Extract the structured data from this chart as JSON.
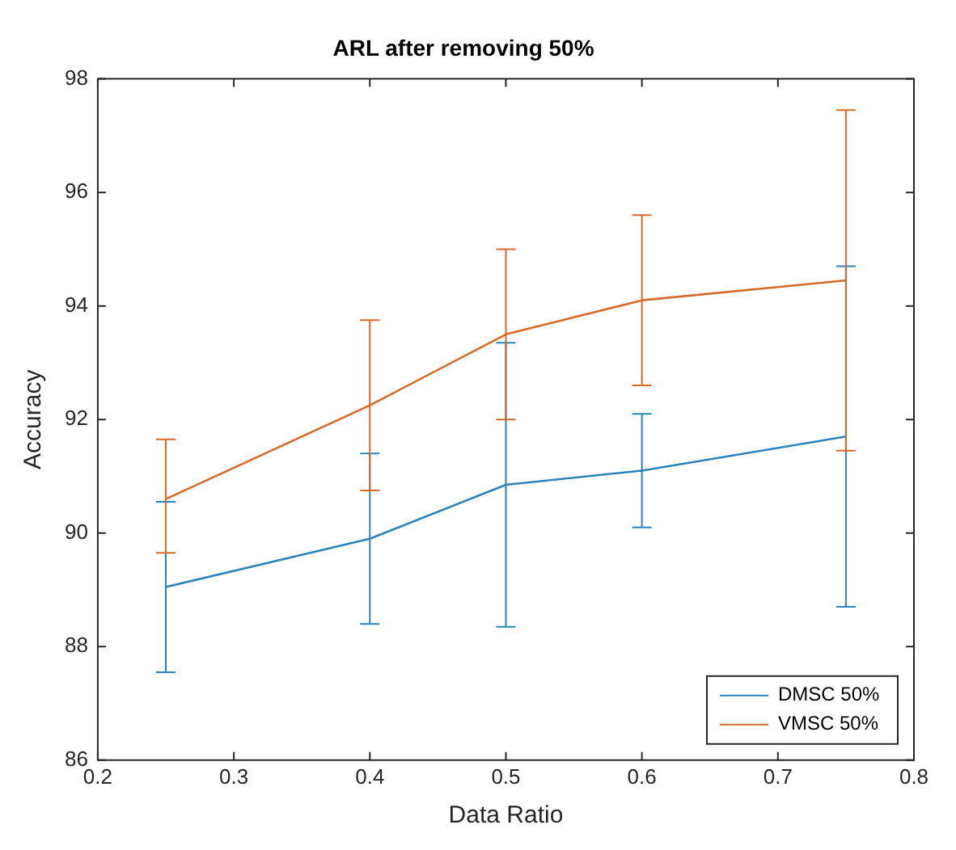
{
  "chart_data": {
    "type": "line",
    "title": "ARL after removing 50%",
    "xlabel": "Data Ratio",
    "ylabel": "Accuracy",
    "x": [
      0.25,
      0.4,
      0.5,
      0.6,
      0.75
    ],
    "series": [
      {
        "name": "DMSC 50%",
        "color": "#2b83ba",
        "values": [
          89.05,
          89.9,
          90.85,
          91.1,
          91.7
        ],
        "errors": [
          [
            87.55,
            90.55
          ],
          [
            88.4,
            91.4
          ],
          [
            88.35,
            93.35
          ],
          [
            90.1,
            92.1
          ],
          [
            88.7,
            94.7
          ]
        ]
      },
      {
        "name": "VMSC 50%",
        "color": "#d9692a",
        "values": [
          90.6,
          92.25,
          93.5,
          94.1,
          94.45
        ],
        "errors": [
          [
            89.65,
            91.65
          ],
          [
            90.75,
            93.75
          ],
          [
            92.0,
            95.0
          ],
          [
            92.6,
            95.6
          ],
          [
            91.45,
            97.45
          ]
        ]
      }
    ],
    "xlim": [
      0.2,
      0.8
    ],
    "xticks": [
      0.2,
      0.3,
      0.4,
      0.5,
      0.6,
      0.7,
      0.8
    ],
    "ylim": [
      86,
      98
    ],
    "yticks": [
      86,
      88,
      90,
      92,
      94,
      96,
      98
    ],
    "grid": false,
    "legend": "bottom right",
    "marker": "none",
    "line_style": "solid"
  }
}
